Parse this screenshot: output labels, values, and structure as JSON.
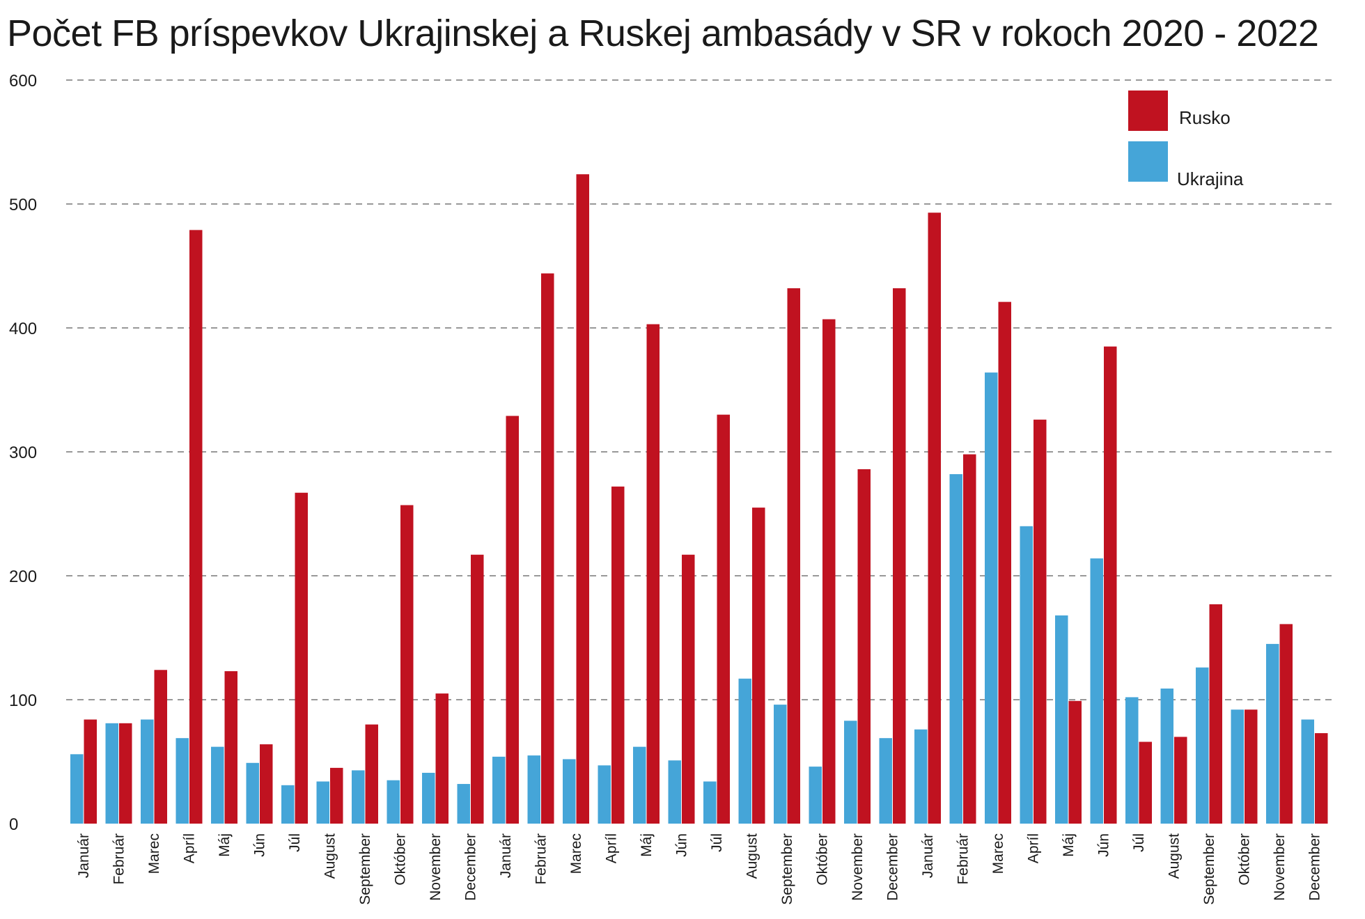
{
  "chart_data": {
    "type": "bar",
    "title": "Počet FB príspevkov Ukrajinskej a Ruskej ambasády v SR v rokoch 2020 - 2022",
    "xlabel": "",
    "ylabel": "",
    "ylim": [
      0,
      600
    ],
    "yticks": [
      0,
      100,
      200,
      300,
      400,
      500,
      600
    ],
    "grid": true,
    "legend": "top-right",
    "categories": [
      "Január",
      "Február",
      "Marec",
      "Apríl",
      "Máj",
      "Jún",
      "Júl",
      "August",
      "September",
      "Október",
      "November",
      "December",
      "Január",
      "Február",
      "Marec",
      "Apríl",
      "Máj",
      "Jún",
      "Júl",
      "August",
      "September",
      "Október",
      "November",
      "December",
      "Január",
      "Február",
      "Marec",
      "Apríl",
      "Máj",
      "Jún",
      "Júl",
      "August",
      "September",
      "Október",
      "November",
      "December"
    ],
    "series": [
      {
        "name": "Ukrajina",
        "color": "#45A5D8",
        "values": [
          56,
          81,
          84,
          69,
          62,
          49,
          31,
          34,
          43,
          35,
          41,
          32,
          54,
          55,
          52,
          47,
          62,
          51,
          34,
          117,
          96,
          46,
          83,
          69,
          76,
          282,
          364,
          240,
          168,
          214,
          102,
          109,
          126,
          92,
          145,
          84
        ]
      },
      {
        "name": "Rusko",
        "color": "#C01220",
        "values": [
          84,
          81,
          124,
          479,
          123,
          64,
          267,
          45,
          80,
          257,
          105,
          217,
          329,
          444,
          524,
          272,
          403,
          217,
          330,
          255,
          432,
          407,
          286,
          432,
          493,
          298,
          421,
          326,
          99,
          385,
          66,
          70,
          177,
          92,
          161,
          73
        ]
      }
    ]
  }
}
